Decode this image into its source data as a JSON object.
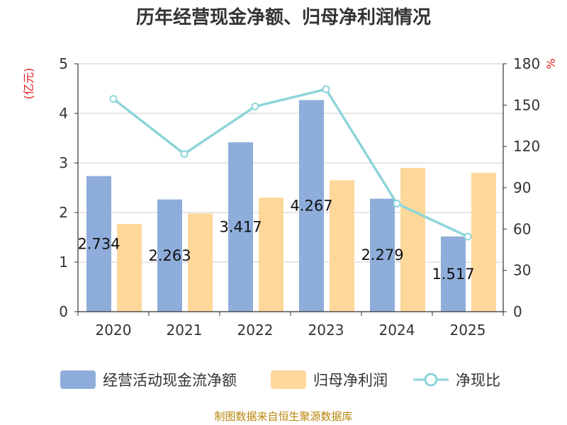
{
  "colors": {
    "series1": "#8eadda",
    "series2": "#fed79a",
    "series3": "#8dd5da",
    "unit": "#e02020",
    "footer": "#b8860b"
  },
  "chart_data": {
    "type": "bar",
    "title": "历年经营现金净额、归母净利润情况",
    "categories": [
      "2020",
      "2021",
      "2022",
      "2023",
      "2024",
      "2025"
    ],
    "y_left": {
      "unit": "(亿元)",
      "ylim": [
        0,
        5
      ],
      "ticks": [
        "0",
        "1",
        "2",
        "3",
        "4",
        "5"
      ]
    },
    "y_right": {
      "unit": "%",
      "ylim": [
        0,
        180
      ],
      "ticks": [
        "0",
        "30",
        "60",
        "90",
        "120",
        "150",
        "180"
      ]
    },
    "series": [
      {
        "name": "经营活动现金流净额",
        "type": "bar",
        "axis": "left",
        "values": [
          2.734,
          2.263,
          3.417,
          4.267,
          2.279,
          1.517
        ],
        "labels": [
          "2.734",
          "2.263",
          "3.417",
          "4.267",
          "2.279",
          "1.517"
        ]
      },
      {
        "name": "归母净利润",
        "type": "bar",
        "axis": "left",
        "values": [
          1.77,
          1.98,
          2.3,
          2.65,
          2.9,
          2.8
        ]
      },
      {
        "name": "净现比",
        "type": "line",
        "axis": "right",
        "values": [
          154.5,
          114.5,
          149.0,
          161.5,
          78.5,
          54.5
        ]
      }
    ],
    "grid": true,
    "legend": "bottom"
  },
  "footer": "制图数据来自恒生聚源数据库"
}
